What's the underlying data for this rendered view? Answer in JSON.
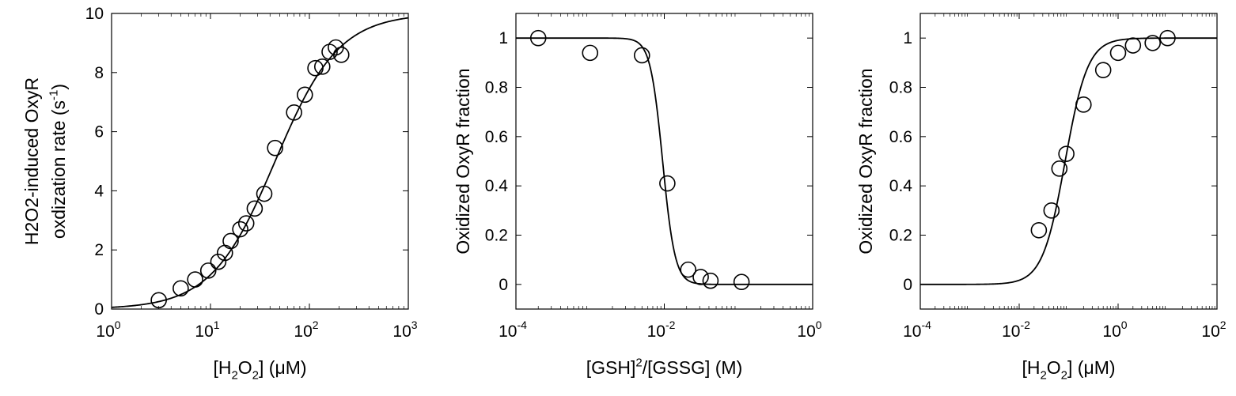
{
  "chart_data": [
    {
      "type": "scatter",
      "xscale": "log",
      "xlim": [
        1,
        1000
      ],
      "ylim": [
        0,
        10
      ],
      "xticks": [
        1,
        10,
        100,
        1000
      ],
      "xtick_labels": [
        [
          "10",
          "0"
        ],
        [
          "10",
          "1"
        ],
        [
          "10",
          "2"
        ],
        [
          "10",
          "3"
        ]
      ],
      "yticks": [
        0,
        2,
        4,
        6,
        8,
        10
      ],
      "ytick_labels": [
        "0",
        "2",
        "4",
        "6",
        "8",
        "10"
      ],
      "xlabel_parts": [
        [
          "[H",
          "n"
        ],
        [
          "2",
          "sub"
        ],
        [
          "O",
          "n"
        ],
        [
          "2",
          "sub"
        ],
        [
          "] (",
          "n"
        ],
        [
          "μ",
          "n"
        ],
        [
          "M)",
          "n"
        ]
      ],
      "ylabel_lines": [
        [
          [
            "H2O2-induced OxyR",
            "n"
          ]
        ],
        [
          [
            "oxdization rate (s",
            "n"
          ],
          [
            "-1",
            "sup"
          ],
          [
            ")",
            "n"
          ]
        ]
      ],
      "markers": {
        "x": [
          3,
          5,
          7,
          9.5,
          12,
          14,
          16,
          20,
          23,
          28,
          35,
          45,
          70,
          90,
          115,
          135,
          160,
          185,
          210
        ],
        "y": [
          0.3,
          0.7,
          1.0,
          1.3,
          1.6,
          1.9,
          2.3,
          2.7,
          2.9,
          3.4,
          3.9,
          5.45,
          6.65,
          7.25,
          8.15,
          8.2,
          8.7,
          8.85,
          8.6
        ]
      },
      "curve": {
        "kind": "hill",
        "log_x": true,
        "low": 0,
        "high": 10,
        "mid": 45,
        "n": 1.35
      },
      "grid": false
    },
    {
      "type": "scatter",
      "xscale": "log",
      "xlim": [
        0.0001,
        1
      ],
      "ylim": [
        -0.1,
        1.1
      ],
      "xticks": [
        0.0001,
        0.01,
        1
      ],
      "xtick_labels": [
        [
          "10",
          "-4"
        ],
        [
          "10",
          "-2"
        ],
        [
          "10",
          "0"
        ]
      ],
      "yticks": [
        0,
        0.2,
        0.4,
        0.6,
        0.8,
        1
      ],
      "ytick_labels": [
        "0",
        "0.2",
        "0.4",
        "0.6",
        "0.8",
        "1"
      ],
      "xlabel_parts": [
        [
          "[GSH]",
          "n"
        ],
        [
          "2",
          "sup"
        ],
        [
          "/[GSSG] (M)",
          "n"
        ]
      ],
      "ylabel_lines": [
        [
          [
            "Oxidized OxyR fraction",
            "n"
          ]
        ]
      ],
      "markers": {
        "x": [
          0.0002,
          0.001,
          0.005,
          0.011,
          0.021,
          0.031,
          0.042,
          0.11
        ],
        "y": [
          1.0,
          0.94,
          0.93,
          0.41,
          0.06,
          0.03,
          0.015,
          0.01
        ]
      },
      "curve": {
        "kind": "hill_down",
        "log_x": true,
        "low": 0,
        "high": 1,
        "mid": 0.0095,
        "n": 5.2
      },
      "grid": false
    },
    {
      "type": "scatter",
      "xscale": "log",
      "xlim": [
        0.0001,
        100
      ],
      "ylim": [
        -0.1,
        1.1
      ],
      "xticks": [
        0.0001,
        0.01,
        1,
        100
      ],
      "xtick_labels": [
        [
          "10",
          "-4"
        ],
        [
          "10",
          "-2"
        ],
        [
          "10",
          "0"
        ],
        [
          "10",
          "2"
        ]
      ],
      "yticks": [
        0,
        0.2,
        0.4,
        0.6,
        0.8,
        1
      ],
      "ytick_labels": [
        "0",
        "0.2",
        "0.4",
        "0.6",
        "0.8",
        "1"
      ],
      "xlabel_parts": [
        [
          "[H",
          "n"
        ],
        [
          "2",
          "sub"
        ],
        [
          "O",
          "n"
        ],
        [
          "2",
          "sub"
        ],
        [
          "] (",
          "n"
        ],
        [
          "μ",
          "n"
        ],
        [
          "M)",
          "n"
        ]
      ],
      "ylabel_lines": [
        [
          [
            "Oxidized OxyR fraction",
            "n"
          ]
        ]
      ],
      "markers": {
        "x": [
          0.025,
          0.045,
          0.065,
          0.09,
          0.2,
          0.5,
          1.0,
          2.0,
          5.0,
          10.0
        ],
        "y": [
          0.22,
          0.3,
          0.47,
          0.53,
          0.73,
          0.87,
          0.94,
          0.97,
          0.98,
          1.0
        ]
      },
      "curve": {
        "kind": "hill",
        "log_x": true,
        "low": 0,
        "high": 1,
        "mid": 0.085,
        "n": 1.9
      },
      "grid": false
    }
  ]
}
